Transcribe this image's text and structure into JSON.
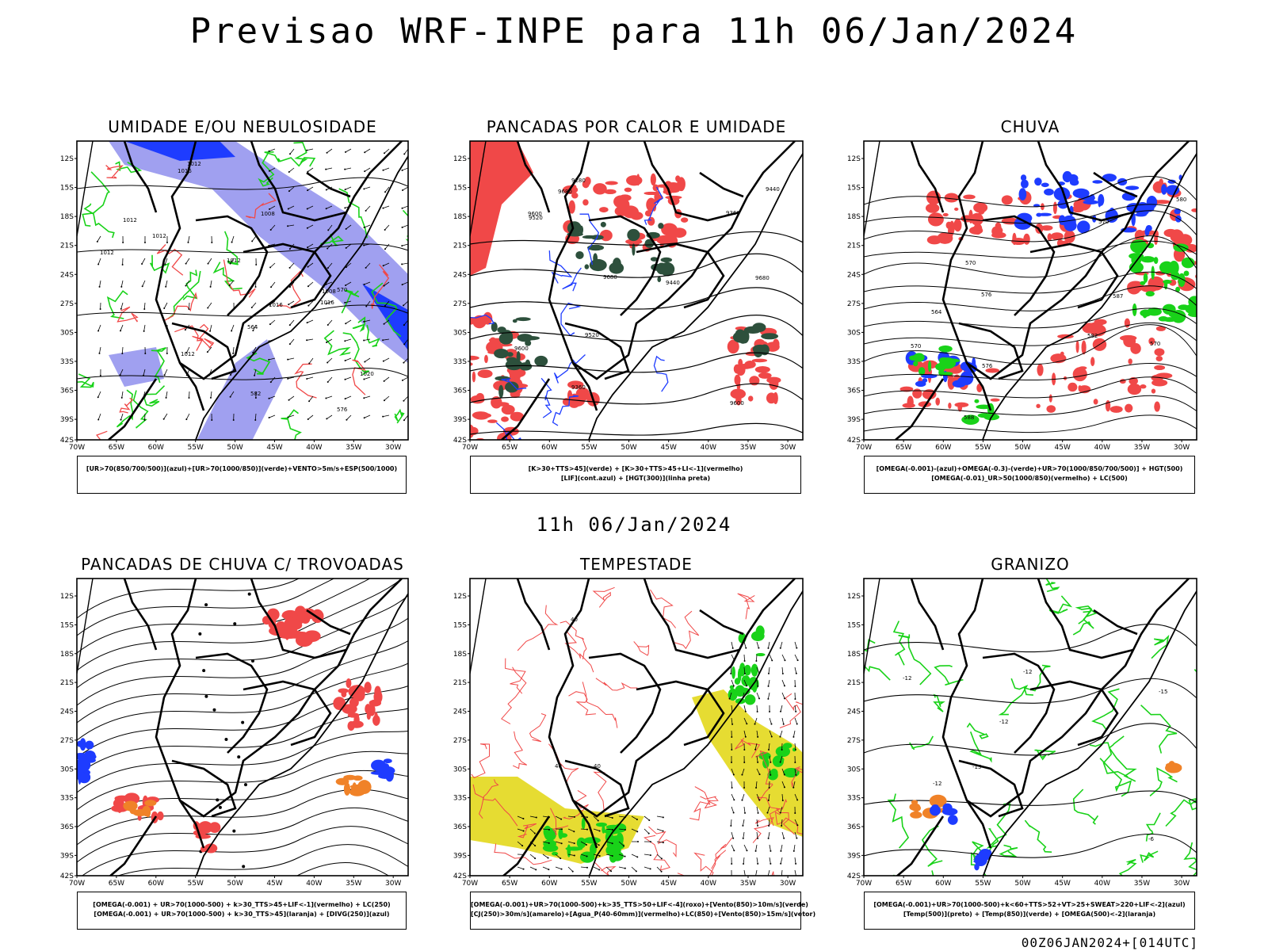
{
  "title": "Previsao WRF-INPE  para 11h 06/Jan/2024",
  "subtitle": "11h 06/Jan/2024",
  "footer": "00Z06JAN2024+[014UTC]",
  "axes": {
    "lat_labels": [
      "12S",
      "15S",
      "18S",
      "21S",
      "24S",
      "27S",
      "30S",
      "33S",
      "36S",
      "39S",
      "42S"
    ],
    "lon_labels": [
      "70W",
      "65W",
      "60W",
      "55W",
      "50W",
      "45W",
      "40W",
      "35W",
      "30W"
    ]
  },
  "chart_data": [
    {
      "type": "map",
      "title": "UMIDADE E/OU NEBULOSIDADE",
      "legend": [
        "[UR>70(850/700/500)](azul)+[UR>70(1000/850)](verde)+VENTO>5m/s+ESP(500/1000)"
      ],
      "contour_labels": [
        "1012",
        "1012",
        "1012",
        "1016",
        "1012",
        "1008",
        "1012",
        "1016",
        "1020",
        "1016",
        "1012",
        "1008",
        "576",
        "570",
        "564",
        "582"
      ],
      "xlim": [
        -70,
        -28
      ],
      "ylim": [
        -42,
        -11
      ]
    },
    {
      "type": "map",
      "title": "PANCADAS POR CALOR E UMIDADE",
      "legend": [
        "[K>30+TTS>45](verde)  +  [K>30+TTS>45+LI<-1](vermelho)",
        "[LIF](cont.azul)  +  [HGT(300)](linha preta)"
      ],
      "contour_labels": [
        "9680",
        "9680",
        "9680",
        "9600",
        "9600",
        "9520",
        "9440",
        "9360",
        "9520",
        "9440",
        "9360",
        "9280",
        "9600"
      ],
      "xlim": [
        -70,
        -28
      ],
      "ylim": [
        -42,
        -11
      ]
    },
    {
      "type": "map",
      "title": "CHUVA",
      "legend": [
        "[OMEGA(-0.001)-(azul)+OMEGA(-0.3)-(verde)+UR>70(1000/850/700/500)]  +  HGT(500)",
        "[OMEGA(-0.01)_UR>50(1000/850)(vermelho)  +  LC(500)"
      ],
      "contour_labels": [
        "588",
        "582",
        "576",
        "576",
        "570",
        "570",
        "564",
        "580",
        "587",
        "570",
        "570"
      ],
      "xlim": [
        -70,
        -28
      ],
      "ylim": [
        -42,
        -11
      ]
    },
    {
      "type": "map",
      "title": "PANCADAS DE CHUVA C/ TROVOADAS",
      "legend": [
        "[OMEGA(-0.001)  +  UR>70(1000-500)  +  k>30_TTS>45+LIF<-1](vermelho)  +  LC(250)",
        "[OMEGA(-0.001)  +  UR>70(1000-500)  +  k>30_TTS>45](laranja)  +  [DIVG(250)](azul)"
      ],
      "contour_labels": [],
      "xlim": [
        -70,
        -28
      ],
      "ylim": [
        -42,
        -11
      ]
    },
    {
      "type": "map",
      "title": "TEMPESTADE",
      "legend": [
        "[OMEGA(-0.001)+UR>70(1000-500)+k>35_TTS>50+LIF<-4](roxo)+[Vento(850)>10m/s](verde)",
        "[CJ(250)>30m/s](amarelo)+[Agua_P(40-60mm)](vermelho)+LC(850)+[Vento(850)>15m/s](vetor)"
      ],
      "contour_labels": [
        "40",
        "40",
        "40"
      ],
      "xlim": [
        -70,
        -28
      ],
      "ylim": [
        -42,
        -11
      ]
    },
    {
      "type": "map",
      "title": "GRANIZO",
      "legend": [
        "[OMEGA(-0.001)+UR>70(1000-500)+k<60+TTS>52+VT>25+SWEAT>220+LIF<-2](azul)",
        "[Temp(500)](preto)  +  [Temp(850)](verde)  +  [OMEGA(500)<-2](laranja)"
      ],
      "contour_labels": [
        "-12",
        "-12",
        "-12",
        "-15",
        "-15",
        "-12",
        "-6"
      ],
      "xlim": [
        -70,
        -28
      ],
      "ylim": [
        -42,
        -11
      ]
    }
  ],
  "colors": {
    "red": "#f04848",
    "green": "#19d219",
    "blue": "#1e3cff",
    "lavender": "#a0a0f0",
    "darkgreen": "#2d503c",
    "yellow": "#e6dc32",
    "orange": "#f08228"
  }
}
